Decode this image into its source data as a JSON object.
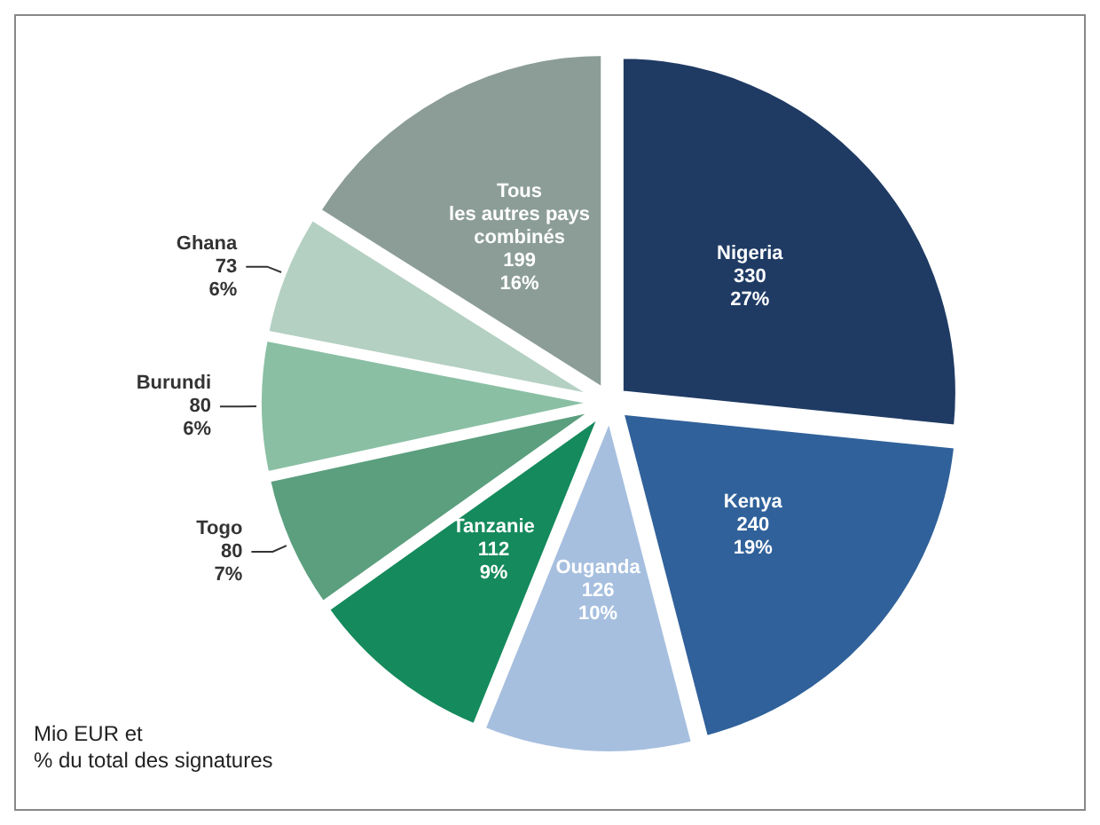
{
  "chart_data": {
    "type": "pie",
    "categories": [
      "Nigeria",
      "Kenya",
      "Ouganda",
      "Tanzanie",
      "Togo",
      "Burundi",
      "Ghana",
      "Tous\nles autres pays\ncombinés"
    ],
    "values": [
      330,
      240,
      126,
      112,
      80,
      80,
      73,
      199
    ],
    "value_labels": [
      "330\n27%",
      "240\n19%",
      "126\n10%",
      "112\n9%",
      "80\n7%",
      "80\n6%",
      "73\n6%",
      "199\n16%"
    ],
    "colors": [
      "#1f3b64",
      "#30619a",
      "#a6bfdf",
      "#158a5c",
      "#5b9f7e",
      "#8abfa4",
      "#b4d0c2",
      "#8c9d97"
    ],
    "annotations": [
      "Mio EUR et\n% du total des signatures"
    ]
  }
}
